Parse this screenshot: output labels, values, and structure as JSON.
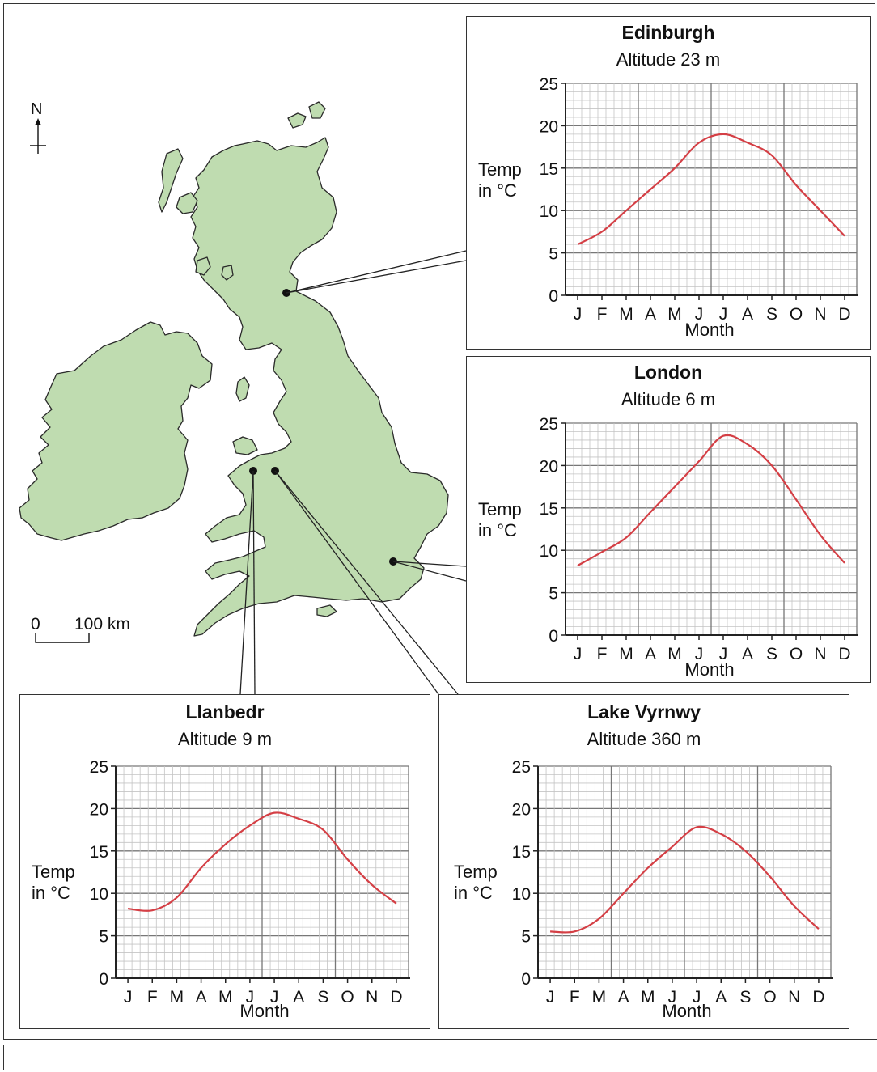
{
  "map": {
    "north_label": "N",
    "scale_zero": "0",
    "scale_label": "100 km",
    "land_color": "#bfdcb0",
    "dot_color": "#111111"
  },
  "line_color": "#d43f45",
  "chart_data": [
    {
      "type": "line",
      "title": "Edinburgh",
      "subtitle": "Altitude 23 m",
      "xlabel": "Month",
      "ylabel": "Temp in °C",
      "ylim": [
        0,
        25
      ],
      "yticks": [
        0,
        5,
        10,
        15,
        20,
        25
      ],
      "categories": [
        "J",
        "F",
        "M",
        "A",
        "M",
        "J",
        "J",
        "A",
        "S",
        "O",
        "N",
        "D"
      ],
      "grid": true,
      "series": [
        {
          "values": [
            6,
            7.5,
            10,
            12.5,
            15,
            18,
            19,
            18,
            16.5,
            13,
            10,
            7
          ]
        }
      ]
    },
    {
      "type": "line",
      "title": "London",
      "subtitle": "Altitude 6 m",
      "xlabel": "Month",
      "ylabel": "Temp in °C",
      "ylim": [
        0,
        25
      ],
      "yticks": [
        0,
        5,
        10,
        15,
        20,
        25
      ],
      "categories": [
        "J",
        "F",
        "M",
        "A",
        "M",
        "J",
        "J",
        "A",
        "S",
        "O",
        "N",
        "D"
      ],
      "grid": true,
      "series": [
        {
          "values": [
            8.2,
            9.8,
            11.5,
            14.5,
            17.5,
            20.5,
            23.5,
            22.5,
            20,
            16,
            11.8,
            8.5
          ]
        }
      ]
    },
    {
      "type": "line",
      "title": "Llanbedr",
      "subtitle": "Altitude 9 m",
      "xlabel": "Month",
      "ylabel": "Temp in °C",
      "ylim": [
        0,
        25
      ],
      "yticks": [
        0,
        5,
        10,
        15,
        20,
        25
      ],
      "categories": [
        "J",
        "F",
        "M",
        "A",
        "M",
        "J",
        "J",
        "A",
        "S",
        "O",
        "N",
        "D"
      ],
      "grid": true,
      "series": [
        {
          "values": [
            8.2,
            8,
            9.5,
            13,
            15.8,
            18,
            19.5,
            18.8,
            17.5,
            14,
            11,
            8.8
          ]
        }
      ]
    },
    {
      "type": "line",
      "title": "Lake Vyrnwy",
      "subtitle": "Altitude 360 m",
      "xlabel": "Month",
      "ylabel": "Temp in °C",
      "ylim": [
        0,
        25
      ],
      "yticks": [
        0,
        5,
        10,
        15,
        20,
        25
      ],
      "categories": [
        "J",
        "F",
        "M",
        "A",
        "M",
        "J",
        "J",
        "A",
        "S",
        "O",
        "N",
        "D"
      ],
      "grid": true,
      "series": [
        {
          "values": [
            5.5,
            5.5,
            7,
            10,
            13,
            15.5,
            17.8,
            17,
            15,
            12,
            8.5,
            5.8
          ]
        }
      ]
    }
  ]
}
